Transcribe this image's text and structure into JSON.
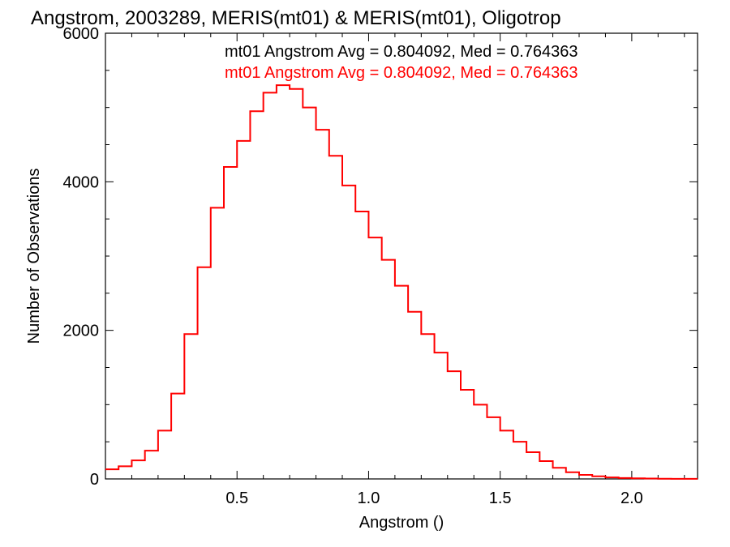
{
  "chart_data": {
    "type": "line",
    "title": "Angstrom, 2003289, MERIS(mt01) & MERIS(mt01), Oligotrop",
    "xlabel": "Angstrom ()",
    "ylabel": "Number of Observations",
    "xlim": [
      0.0,
      2.25
    ],
    "ylim": [
      0,
      6000
    ],
    "x_ticks": [
      0.5,
      1.0,
      1.5,
      2.0
    ],
    "x_tick_labels": [
      "0.5",
      "1.0",
      "1.5",
      "2.0"
    ],
    "y_ticks": [
      0,
      2000,
      4000,
      6000
    ],
    "y_tick_labels": [
      "0",
      "2000",
      "4000",
      "6000"
    ],
    "legend_placement": "top-right",
    "legend": [
      {
        "label": "mt01 Angstrom Avg = 0.804092, Med = 0.764363",
        "color": "#000000"
      },
      {
        "label": "mt01 Angstrom Avg = 0.804092, Med = 0.764363",
        "color": "#ff0000"
      }
    ],
    "series": [
      {
        "color": "#ff0000",
        "style": "step",
        "x": [
          0.0,
          0.05,
          0.1,
          0.15,
          0.2,
          0.25,
          0.3,
          0.35,
          0.4,
          0.45,
          0.5,
          0.55,
          0.6,
          0.65,
          0.7,
          0.75,
          0.8,
          0.85,
          0.9,
          0.95,
          1.0,
          1.05,
          1.1,
          1.15,
          1.2,
          1.25,
          1.3,
          1.35,
          1.4,
          1.45,
          1.5,
          1.55,
          1.6,
          1.65,
          1.7,
          1.75,
          1.8,
          1.85,
          1.9,
          1.95,
          2.0,
          2.05,
          2.1,
          2.15,
          2.2,
          2.25
        ],
        "y": [
          130,
          170,
          250,
          380,
          650,
          1150,
          1950,
          2850,
          3650,
          4200,
          4550,
          4950,
          5200,
          5300,
          5250,
          5000,
          4700,
          4350,
          3950,
          3600,
          3250,
          2950,
          2600,
          2250,
          1950,
          1700,
          1450,
          1200,
          1000,
          830,
          650,
          500,
          360,
          240,
          150,
          90,
          55,
          35,
          20,
          12,
          8,
          5,
          3,
          2,
          1,
          1
        ]
      }
    ]
  }
}
